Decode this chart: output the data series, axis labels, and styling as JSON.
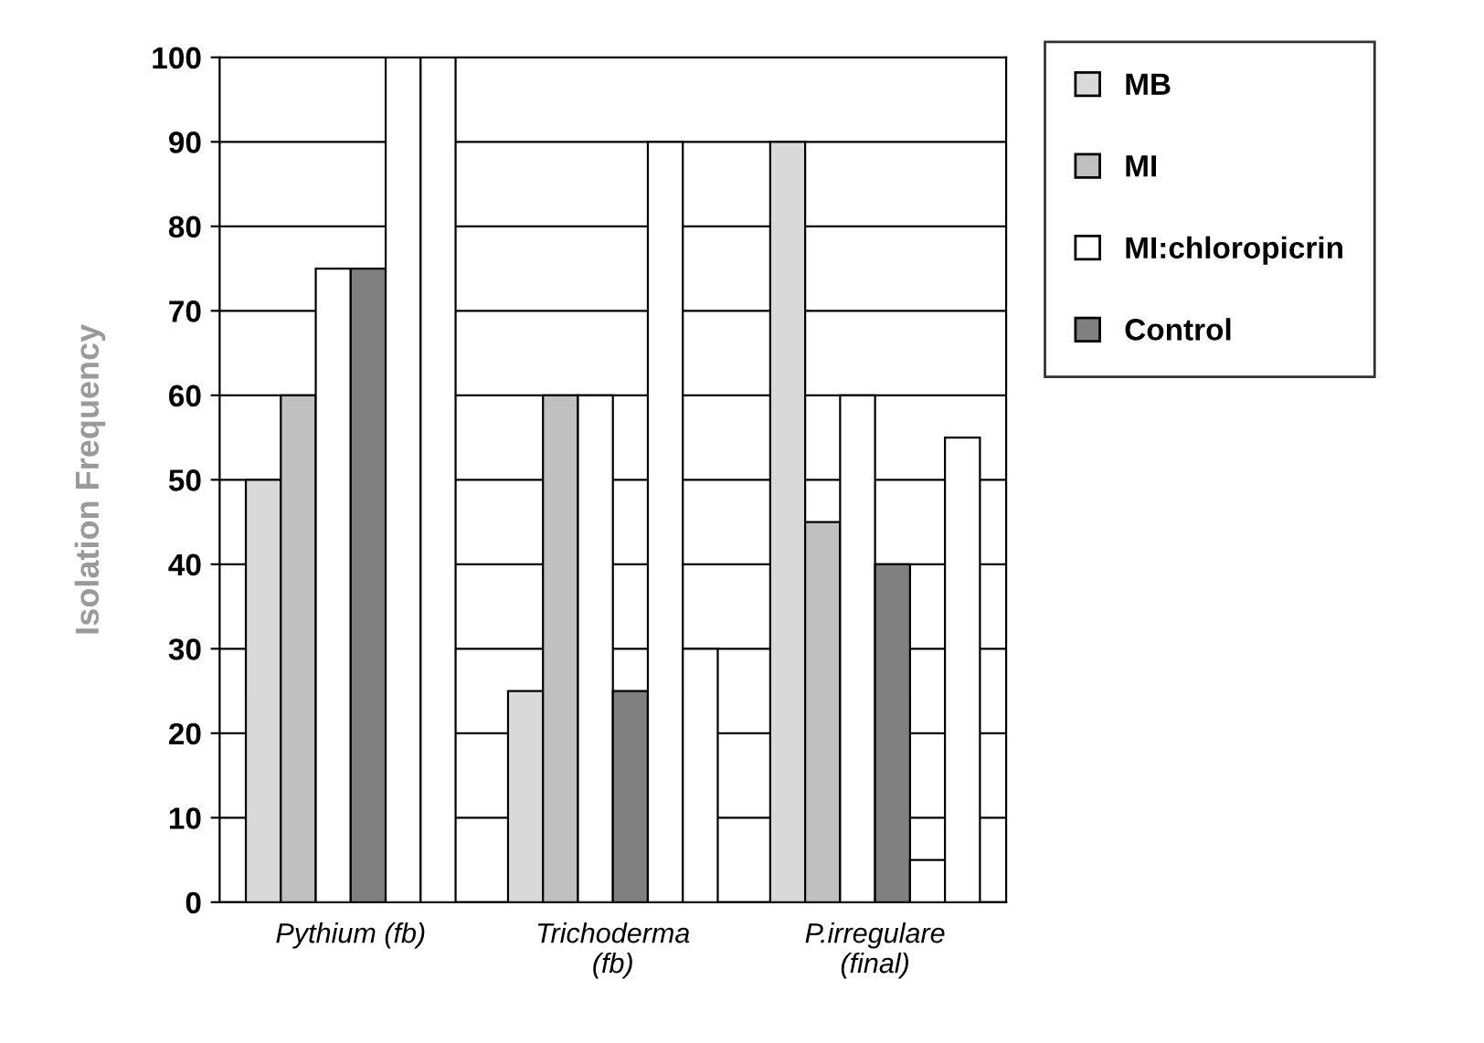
{
  "chart_data": {
    "type": "bar",
    "ylabel": "Isolation Frequency",
    "categories": [
      "Pythium (fb)",
      "Trichoderma\n(fb)",
      "P.irregulare\n(final)"
    ],
    "series": [
      {
        "name": "MB",
        "color": "#d9d9d9",
        "values": [
          50,
          25,
          90
        ]
      },
      {
        "name": "MI",
        "color": "#c0c0c0",
        "values": [
          60,
          60,
          45
        ]
      },
      {
        "name": "MI:chloropicrin",
        "color": "#ffffff",
        "values": [
          75,
          60,
          60
        ]
      },
      {
        "name": "Control",
        "color": "#808080",
        "values": [
          75,
          25,
          40
        ]
      },
      {
        "color": "#ffffff",
        "values": [
          100,
          90,
          5
        ]
      },
      {
        "color": "#ffffff",
        "values": [
          100,
          30,
          55
        ]
      }
    ],
    "ylim": [
      0,
      100
    ],
    "yticks": [
      0,
      10,
      20,
      30,
      40,
      50,
      60,
      70,
      80,
      90,
      100
    ],
    "grid": "y",
    "legend": "right"
  }
}
